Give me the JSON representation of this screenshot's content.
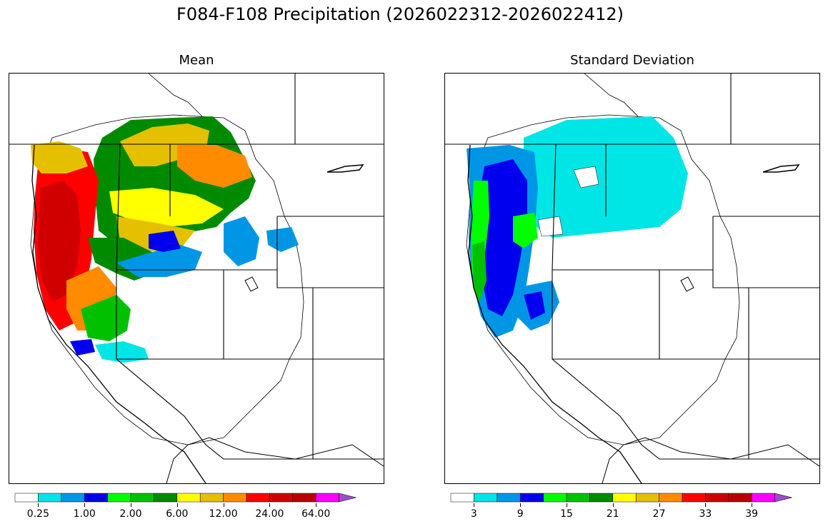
{
  "title": "F084-F108 Precipitation (2026022312-2026022412)",
  "panels": [
    {
      "id": "mean",
      "title": "Mean",
      "colorbar": {
        "colors": [
          "#ffffff",
          "#00e5e5",
          "#0096e6",
          "#0000ef",
          "#00ff00",
          "#00c000",
          "#008a00",
          "#ffff00",
          "#e5c000",
          "#ff8c00",
          "#ff0000",
          "#d00000",
          "#b80000",
          "#ff00ff",
          "#9750c8"
        ],
        "tick_labels": [
          "0.25",
          "1.00",
          "2.00",
          "6.00",
          "12.00",
          "24.00",
          "64.00"
        ],
        "extend": "max"
      }
    },
    {
      "id": "stddev",
      "title": "Standard Deviation",
      "colorbar": {
        "colors": [
          "#ffffff",
          "#00e5e5",
          "#0096e6",
          "#0000ef",
          "#00ff00",
          "#00c000",
          "#008a00",
          "#ffff00",
          "#e5c000",
          "#ff8c00",
          "#ff0000",
          "#d00000",
          "#b80000",
          "#ff00ff",
          "#9750c8"
        ],
        "tick_labels": [
          "3",
          "9",
          "15",
          "21",
          "27",
          "33",
          "39"
        ],
        "extend": "max"
      }
    }
  ]
}
